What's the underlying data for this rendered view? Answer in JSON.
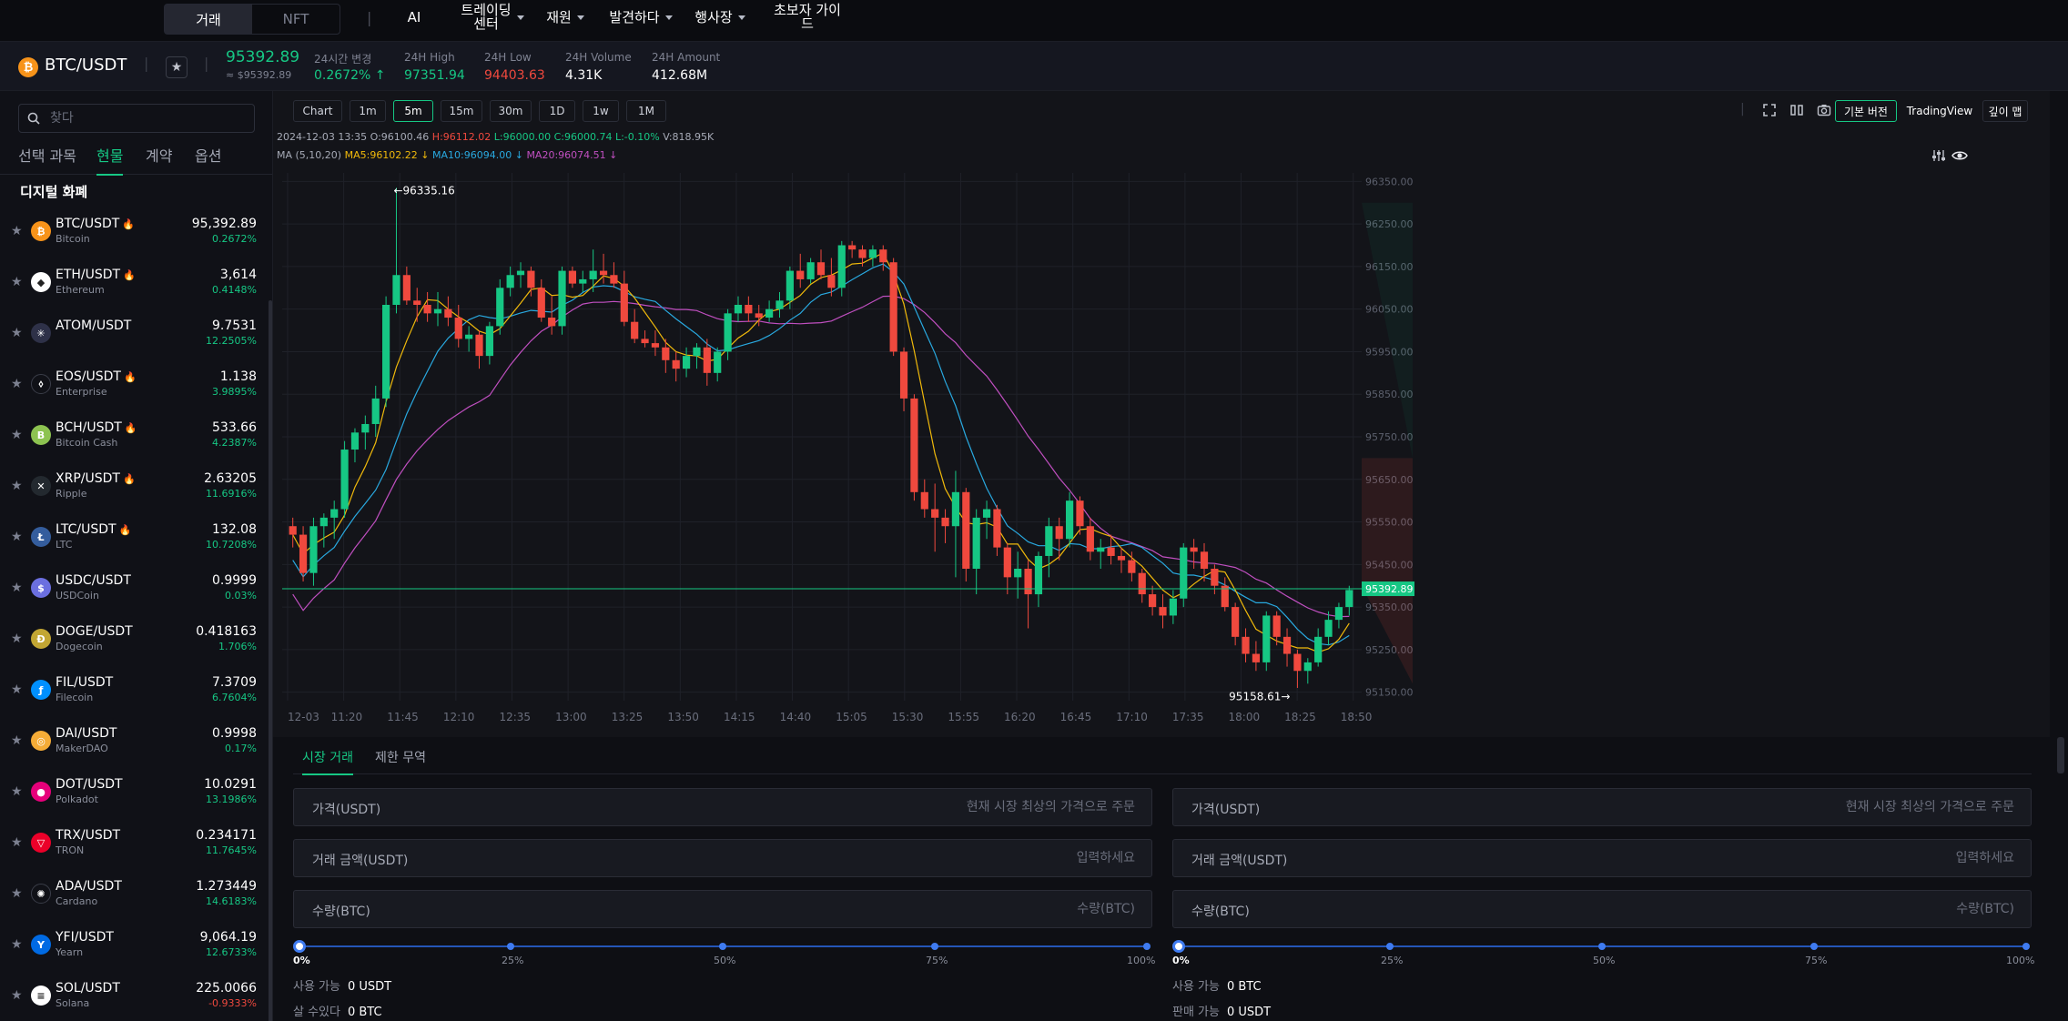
{
  "nav": {
    "seg_trade": "거래",
    "seg_nft": "NFT",
    "ai": "AI",
    "trading_center_1": "트레이딩",
    "trading_center_2": "센터",
    "finance": "재원",
    "discover": "발견하다",
    "events": "행사장",
    "guide_1": "초보자 가이",
    "guide_2": "드"
  },
  "ticker": {
    "pair": "BTC/USDT",
    "price": "95392.89",
    "price_usd": "≈ $95392.89",
    "change_label": "24시간 변경",
    "change_value": "0.2672% ↑",
    "high_label": "24H High",
    "high_value": "97351.94",
    "low_label": "24H Low",
    "low_value": "94403.63",
    "volume_label": "24H Volume",
    "volume_value": "4.31K",
    "amount_label": "24H Amount",
    "amount_value": "412.68M",
    "colors": {
      "up": "#16c784",
      "down": "#f0493e"
    }
  },
  "sidebar": {
    "search_placeholder": "찾다",
    "tabs": [
      "선택 과목",
      "현물",
      "계약",
      "옵션"
    ],
    "active_tab": 1,
    "section_title": "디지털 화폐",
    "coins": [
      {
        "pair": "BTC/USDT",
        "name": "Bitcoin",
        "price": "95,392.89",
        "change": "0.2672%",
        "hot": true,
        "color": "#f7931a",
        "glyph": "₿",
        "up": true
      },
      {
        "pair": "ETH/USDT",
        "name": "Ethereum",
        "price": "3,614",
        "change": "0.4148%",
        "hot": true,
        "color": "#ffffff",
        "glyph": "◆",
        "up": true
      },
      {
        "pair": "ATOM/USDT",
        "name": "",
        "price": "9.7531",
        "change": "12.2505%",
        "hot": false,
        "color": "#2e3148",
        "glyph": "✳",
        "up": true
      },
      {
        "pair": "EOS/USDT",
        "name": "Enterprise",
        "price": "1.138",
        "change": "3.9895%",
        "hot": true,
        "color": "#101117",
        "glyph": "⬨",
        "up": true
      },
      {
        "pair": "BCH/USDT",
        "name": "Bitcoin Cash",
        "price": "533.66",
        "change": "4.2387%",
        "hot": true,
        "color": "#8dc351",
        "glyph": "B",
        "up": true
      },
      {
        "pair": "XRP/USDT",
        "name": "Ripple",
        "price": "2.63205",
        "change": "11.6916%",
        "hot": true,
        "color": "#23292f",
        "glyph": "✕",
        "up": true
      },
      {
        "pair": "LTC/USDT",
        "name": "LTC",
        "price": "132.08",
        "change": "10.7208%",
        "hot": true,
        "color": "#345d9d",
        "glyph": "Ł",
        "up": true
      },
      {
        "pair": "USDC/USDT",
        "name": "USDCoin",
        "price": "0.9999",
        "change": "0.03%",
        "hot": false,
        "color": "#6b6fe0",
        "glyph": "$",
        "up": true
      },
      {
        "pair": "DOGE/USDT",
        "name": "Dogecoin",
        "price": "0.418163",
        "change": "1.706%",
        "hot": false,
        "color": "#c2a633",
        "glyph": "Ð",
        "up": true
      },
      {
        "pair": "FIL/USDT",
        "name": "Filecoin",
        "price": "7.3709",
        "change": "6.7604%",
        "hot": false,
        "color": "#0090ff",
        "glyph": "ƒ",
        "up": true
      },
      {
        "pair": "DAI/USDT",
        "name": "MakerDAO",
        "price": "0.9998",
        "change": "0.17%",
        "hot": false,
        "color": "#f5ac37",
        "glyph": "◎",
        "up": true
      },
      {
        "pair": "DOT/USDT",
        "name": "Polkadot",
        "price": "10.0291",
        "change": "13.1986%",
        "hot": false,
        "color": "#e6007a",
        "glyph": "●",
        "up": true
      },
      {
        "pair": "TRX/USDT",
        "name": "TRON",
        "price": "0.234171",
        "change": "11.7645%",
        "hot": false,
        "color": "#eb0029",
        "glyph": "▽",
        "up": true
      },
      {
        "pair": "ADA/USDT",
        "name": "Cardano",
        "price": "1.273449",
        "change": "14.6183%",
        "hot": false,
        "color": "#101117",
        "glyph": "✺",
        "up": true
      },
      {
        "pair": "YFI/USDT",
        "name": "Yearn",
        "price": "9,064.19",
        "change": "12.6733%",
        "hot": false,
        "color": "#006ae3",
        "glyph": "Y",
        "up": true
      },
      {
        "pair": "SOL/USDT",
        "name": "Solana",
        "price": "225.0066",
        "change": "-0.9333%",
        "hot": false,
        "color": "#ffffff",
        "glyph": "≡",
        "up": false
      }
    ]
  },
  "chart_toolbar": {
    "timeframes": [
      "Chart",
      "1m",
      "5m",
      "15m",
      "30m",
      "1D",
      "1w",
      "1M"
    ],
    "active": 2,
    "basic_version": "기본 버전",
    "tradingview": "TradingView",
    "depth": "깊이 맵"
  },
  "chart_info": {
    "datetime": "2024-12-03 13:35",
    "open": "O:96100.46",
    "high": "H:96112.02",
    "low": "L:96000.00",
    "close": "C:96000.74",
    "change": "L:-0.10%",
    "volume": "V:818.95K",
    "ma_label": "MA (5,10,20)",
    "ma5": "MA5:96102.22 ↓",
    "ma10": "MA10:96094.00 ↓",
    "ma20": "MA20:96074.51 ↓",
    "max_label": "←96335.16",
    "min_label": "95158.61→",
    "current_price": "95392.89"
  },
  "chart_data": {
    "type": "candlestick",
    "x_ticks": [
      "12-03",
      "11:20",
      "11:45",
      "12:10",
      "12:35",
      "13:00",
      "13:25",
      "13:50",
      "14:15",
      "14:40",
      "15:05",
      "15:30",
      "15:55",
      "16:20",
      "16:45",
      "17:10",
      "17:35",
      "18:00",
      "18:25",
      "18:50"
    ],
    "y_ticks": [
      96350,
      96250,
      96150,
      96050,
      95950,
      95850,
      95750,
      95650,
      95550,
      95450,
      95350,
      95250,
      95150
    ],
    "ylim": [
      95130,
      96370
    ],
    "current_price": 95392.89,
    "colors": {
      "up": "#16c784",
      "down": "#f0493e",
      "ma5": "#f0b90b",
      "ma10": "#29a9e0",
      "ma20": "#c04fc0"
    },
    "candles": [
      [
        95540,
        95560,
        95490,
        95520
      ],
      [
        95520,
        95540,
        95410,
        95430
      ],
      [
        95430,
        95560,
        95400,
        95540
      ],
      [
        95540,
        95570,
        95490,
        95560
      ],
      [
        95560,
        95600,
        95510,
        95580
      ],
      [
        95580,
        95740,
        95560,
        95720
      ],
      [
        95720,
        95770,
        95690,
        95760
      ],
      [
        95760,
        95800,
        95720,
        95780
      ],
      [
        95780,
        95870,
        95750,
        95840
      ],
      [
        95840,
        96080,
        95820,
        96060
      ],
      [
        96060,
        96335,
        96040,
        96130
      ],
      [
        96130,
        96150,
        96060,
        96070
      ],
      [
        96070,
        96100,
        96020,
        96060
      ],
      [
        96060,
        96090,
        96020,
        96040
      ],
      [
        96040,
        96090,
        96010,
        96050
      ],
      [
        96050,
        96080,
        96010,
        96030
      ],
      [
        96030,
        96060,
        95960,
        95980
      ],
      [
        95980,
        96010,
        95950,
        95990
      ],
      [
        95990,
        96000,
        95910,
        95940
      ],
      [
        95940,
        96020,
        95920,
        96010
      ],
      [
        96010,
        96120,
        95990,
        96100
      ],
      [
        96100,
        96150,
        96080,
        96130
      ],
      [
        96130,
        96160,
        96100,
        96140
      ],
      [
        96140,
        96150,
        96080,
        96100
      ],
      [
        96100,
        96120,
        96020,
        96030
      ],
      [
        96030,
        96080,
        95990,
        96010
      ],
      [
        96010,
        96150,
        95990,
        96140
      ],
      [
        96140,
        96150,
        96100,
        96110
      ],
      [
        96110,
        96140,
        96090,
        96120
      ],
      [
        96120,
        96190,
        96090,
        96140
      ],
      [
        96140,
        96180,
        96110,
        96130
      ],
      [
        96130,
        96160,
        96100,
        96110
      ],
      [
        96110,
        96140,
        96010,
        96020
      ],
      [
        96020,
        96050,
        95970,
        95980
      ],
      [
        95980,
        96000,
        95960,
        95970
      ],
      [
        95970,
        96000,
        95940,
        95960
      ],
      [
        95960,
        95980,
        95900,
        95930
      ],
      [
        95930,
        95950,
        95880,
        95910
      ],
      [
        95910,
        95960,
        95890,
        95940
      ],
      [
        95940,
        95970,
        95910,
        95960
      ],
      [
        95960,
        95980,
        95870,
        95900
      ],
      [
        95900,
        95960,
        95880,
        95950
      ],
      [
        95950,
        96050,
        95930,
        96040
      ],
      [
        96040,
        96080,
        96020,
        96060
      ],
      [
        96060,
        96080,
        96020,
        96040
      ],
      [
        96040,
        96060,
        96010,
        96030
      ],
      [
        96030,
        96070,
        96020,
        96050
      ],
      [
        96050,
        96090,
        96030,
        96070
      ],
      [
        96070,
        96150,
        96050,
        96140
      ],
      [
        96140,
        96180,
        96100,
        96120
      ],
      [
        96120,
        96170,
        96110,
        96160
      ],
      [
        96160,
        96190,
        96120,
        96130
      ],
      [
        96130,
        96170,
        96080,
        96100
      ],
      [
        96100,
        96210,
        96080,
        96200
      ],
      [
        96200,
        96210,
        96170,
        96190
      ],
      [
        96190,
        96200,
        96150,
        96170
      ],
      [
        96170,
        96200,
        96150,
        96190
      ],
      [
        96190,
        96200,
        96140,
        96160
      ],
      [
        96160,
        96170,
        95940,
        95950
      ],
      [
        95950,
        95960,
        95810,
        95840
      ],
      [
        95840,
        95850,
        95600,
        95620
      ],
      [
        95620,
        95650,
        95560,
        95580
      ],
      [
        95580,
        95640,
        95480,
        95560
      ],
      [
        95560,
        95580,
        95500,
        95540
      ],
      [
        95540,
        95670,
        95420,
        95620
      ],
      [
        95620,
        95630,
        95410,
        95440
      ],
      [
        95440,
        95580,
        95380,
        95560
      ],
      [
        95560,
        95600,
        95510,
        95580
      ],
      [
        95580,
        95590,
        95470,
        95490
      ],
      [
        95490,
        95500,
        95380,
        95420
      ],
      [
        95420,
        95480,
        95370,
        95440
      ],
      [
        95440,
        95460,
        95300,
        95380
      ],
      [
        95380,
        95480,
        95350,
        95470
      ],
      [
        95470,
        95560,
        95420,
        95540
      ],
      [
        95540,
        95560,
        95460,
        95510
      ],
      [
        95510,
        95620,
        95490,
        95600
      ],
      [
        95600,
        95610,
        95520,
        95540
      ],
      [
        95540,
        95560,
        95460,
        95480
      ],
      [
        95480,
        95510,
        95440,
        95490
      ],
      [
        95490,
        95520,
        95450,
        95470
      ],
      [
        95470,
        95490,
        95430,
        95460
      ],
      [
        95460,
        95480,
        95410,
        95430
      ],
      [
        95430,
        95440,
        95360,
        95380
      ],
      [
        95380,
        95400,
        95330,
        95350
      ],
      [
        95350,
        95380,
        95300,
        95330
      ],
      [
        95330,
        95390,
        95310,
        95370
      ],
      [
        95370,
        95500,
        95350,
        95490
      ],
      [
        95490,
        95510,
        95440,
        95480
      ],
      [
        95480,
        95500,
        95410,
        95440
      ],
      [
        95440,
        95450,
        95380,
        95400
      ],
      [
        95400,
        95420,
        95340,
        95350
      ],
      [
        95350,
        95360,
        95260,
        95280
      ],
      [
        95280,
        95300,
        95220,
        95240
      ],
      [
        95240,
        95270,
        95200,
        95220
      ],
      [
        95220,
        95340,
        95200,
        95330
      ],
      [
        95330,
        95340,
        95260,
        95280
      ],
      [
        95280,
        95300,
        95210,
        95240
      ],
      [
        95240,
        95250,
        95160,
        95200
      ],
      [
        95200,
        95230,
        95170,
        95220
      ],
      [
        95220,
        95300,
        95210,
        95280
      ],
      [
        95280,
        95340,
        95260,
        95320
      ],
      [
        95320,
        95360,
        95300,
        95350
      ],
      [
        95350,
        95400,
        95330,
        95390
      ]
    ]
  },
  "order": {
    "tabs": [
      "시장 거래",
      "제한 무역"
    ],
    "price_label": "가격(USDT)",
    "price_placeholder": "현재 시장 최상의 가격으로 주문",
    "amount_label": "거래 금액(USDT)",
    "amount_placeholder": "입력하세요",
    "qty_label": "수량(BTC)",
    "qty_placeholder": "수량(BTC)",
    "percents": [
      "0%",
      "25%",
      "50%",
      "75%",
      "100%"
    ],
    "buy_avail_label": "사용 가능",
    "buy_avail_value": "0 USDT",
    "buy_can_label": "살 수있다",
    "buy_can_value": "0 BTC",
    "sell_avail_label": "사용 가능",
    "sell_avail_value": "0 BTC",
    "sell_can_label": "판매 가능",
    "sell_can_value": "0 USDT"
  }
}
